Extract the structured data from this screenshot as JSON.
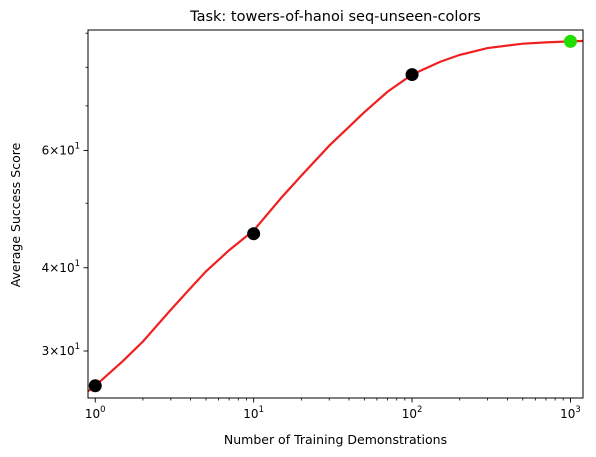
{
  "chart_data": {
    "type": "scatter",
    "title": "Task: towers-of-hanoi seq-unseen-colors",
    "xlabel": "Number of Training Demonstrations",
    "ylabel": "Average Success Score",
    "x_scale": "log",
    "y_scale": "log",
    "xlim": [
      0.9,
      1200
    ],
    "ylim": [
      25.5,
      91
    ],
    "x_ticks": [
      {
        "value": 1,
        "base": "10",
        "exp": "0"
      },
      {
        "value": 10,
        "base": "10",
        "exp": "1"
      },
      {
        "value": 100,
        "base": "10",
        "exp": "2"
      },
      {
        "value": 1000,
        "base": "10",
        "exp": "3"
      }
    ],
    "y_ticks": [
      {
        "value": 30,
        "mant": "3",
        "base": "×10",
        "exp": "1"
      },
      {
        "value": 40,
        "mant": "4",
        "base": "×10",
        "exp": "1"
      },
      {
        "value": 60,
        "mant": "6",
        "base": "×10",
        "exp": "1"
      }
    ],
    "series": [
      {
        "type": "scatter",
        "color": "#000000",
        "points": [
          {
            "x": 1,
            "y": 26.6
          },
          {
            "x": 10,
            "y": 45.0
          },
          {
            "x": 100,
            "y": 78.0
          }
        ]
      },
      {
        "type": "scatter",
        "color": "#22dd00",
        "points": [
          {
            "x": 1000,
            "y": 87.5
          }
        ]
      },
      {
        "type": "line",
        "color": "#f02020",
        "points": [
          {
            "x": 0.9,
            "y": 26.1
          },
          {
            "x": 1,
            "y": 26.6
          },
          {
            "x": 1.5,
            "y": 29.0
          },
          {
            "x": 2,
            "y": 31.0
          },
          {
            "x": 3,
            "y": 34.6
          },
          {
            "x": 4,
            "y": 37.3
          },
          {
            "x": 5,
            "y": 39.5
          },
          {
            "x": 7,
            "y": 42.5
          },
          {
            "x": 10,
            "y": 45.5
          },
          {
            "x": 15,
            "y": 51.0
          },
          {
            "x": 20,
            "y": 55.0
          },
          {
            "x": 30,
            "y": 61.0
          },
          {
            "x": 50,
            "y": 68.5
          },
          {
            "x": 70,
            "y": 73.5
          },
          {
            "x": 100,
            "y": 78.0
          },
          {
            "x": 150,
            "y": 81.5
          },
          {
            "x": 200,
            "y": 83.5
          },
          {
            "x": 300,
            "y": 85.5
          },
          {
            "x": 500,
            "y": 86.8
          },
          {
            "x": 700,
            "y": 87.2
          },
          {
            "x": 1000,
            "y": 87.5
          },
          {
            "x": 1200,
            "y": 87.6
          }
        ]
      }
    ],
    "grid": false,
    "legend": false
  }
}
